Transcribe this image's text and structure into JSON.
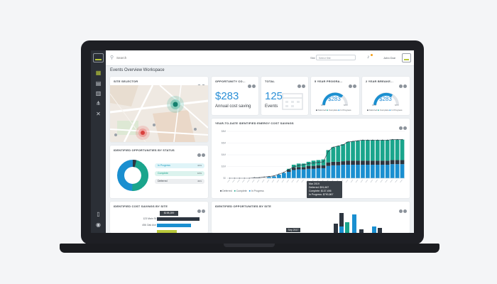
{
  "search": {
    "placeholder": "Search"
  },
  "header": {
    "site_label": "Site",
    "site_value": "Select Site",
    "user_name": "John Doe"
  },
  "page_title": "Events Overview Workspace",
  "cards": {
    "site_selector": {
      "title": "SITE SELECTOR"
    },
    "opportunity": {
      "title": "OPPORTUNITY CO...",
      "value": "$283",
      "sub": "Annual cost saving"
    },
    "total": {
      "title": "TOTAL",
      "value": "125",
      "sub": "Events"
    },
    "five_year": {
      "title": "5 YEAR PROGRA...",
      "value": "$283",
      "left": "$0M",
      "right": "$0M",
      "legend": [
        "Deferred",
        "Complete",
        "In Progress"
      ]
    },
    "two_year": {
      "title": "2 YEAR BREAKE...",
      "value": "$283",
      "left": "$0M",
      "right": "$0M",
      "legend": [
        "Deferred",
        "Complete",
        "In Progress"
      ]
    },
    "status": {
      "title": "IDENTIFIED OPPORTUNITIES BY STATUS",
      "items": [
        {
          "label": "In Progress",
          "pct": "41%",
          "color": "#1a9dbf",
          "bg": "#dff4f8"
        },
        {
          "label": "Complete",
          "pct": "10%",
          "color": "#1aa58c",
          "bg": "#dcf3ee"
        },
        {
          "label": "Deferred",
          "pct": "49%",
          "color": "#3b4148",
          "bg": "#eceef0"
        }
      ]
    },
    "ytd": {
      "title": "YEAR-TO-DATE IDENTIFIED ENERGY COST SAVINGS",
      "tooltip": {
        "date": "Mar 2019",
        "deferred": "Deferred: $91,667",
        "complete": "Complete: $137,456",
        "in_progress": "In Progress: $790,867"
      },
      "legend": [
        "Deferred",
        "Complete",
        "In Progress"
      ]
    },
    "by_site": {
      "title": "IDENTIFIED COST SAVINGS BY SITE",
      "tooltip": "$198,289",
      "row1": "123 Main St",
      "row2": "456 Oak Ave"
    },
    "opps_site": {
      "title": "IDENTIFIED OPPORTUNITIES BY SITE",
      "tooltip": "Sep 2017"
    }
  },
  "chart_data": {
    "type": "bar",
    "title": "YEAR-TO-DATE IDENTIFIED ENERGY COST SAVINGS",
    "y_ticks": [
      "$0",
      "$2M",
      "$4M",
      "$6M",
      "$8M"
    ],
    "ylim": [
      0,
      8
    ],
    "stacked": true,
    "legend_position": "bottom",
    "series": [
      {
        "name": "In Progress",
        "color": "#1a8fd0",
        "values": [
          0,
          0,
          0,
          0,
          0,
          0,
          0,
          0,
          0.2,
          0.3,
          0.6,
          0.9,
          1.1,
          1.4,
          1.5,
          1.5,
          1.6,
          1.6,
          1.7,
          1.7,
          2.1,
          2.2,
          2.2,
          2.3,
          2.3,
          2.3,
          2.3,
          2.3,
          2.3,
          2.3,
          2.3,
          2.3,
          2.3,
          2.4,
          2.4,
          2.4
        ]
      },
      {
        "name": "Deferred",
        "color": "#2d3540",
        "values": [
          0,
          0,
          0,
          0,
          0,
          0,
          0,
          0,
          0,
          0,
          0,
          0,
          0.3,
          0.4,
          0.4,
          0.4,
          0.5,
          0.5,
          0.5,
          0.5,
          0.6,
          0.6,
          0.6,
          0.6,
          0.7,
          0.7,
          0.7,
          0.7,
          0.7,
          0.7,
          0.7,
          0.7,
          0.7,
          0.7,
          0.7,
          0.7
        ]
      },
      {
        "name": "Complete",
        "color": "#1aa58c",
        "values": [
          0,
          0,
          0,
          0,
          0,
          0,
          0,
          0,
          0,
          0,
          0,
          0,
          0.2,
          0.5,
          0.6,
          0.6,
          0.7,
          0.9,
          0.9,
          1.0,
          2.1,
          2.5,
          2.7,
          2.9,
          3.2,
          3.3,
          3.4,
          3.5,
          3.5,
          3.5,
          3.5,
          3.5,
          3.5,
          3.5,
          3.5,
          3.5
        ]
      }
    ],
    "line_values": [
      0,
      0,
      0,
      0,
      0,
      0.1,
      0.1,
      0.2,
      0.3,
      0.4,
      0.7,
      1.0,
      1.5,
      1.9,
      2.2,
      2.3,
      2.5,
      2.6,
      2.7,
      2.8,
      4.6,
      5.3,
      5.5,
      5.7,
      6.2,
      6.3,
      6.4,
      6.5,
      6.5,
      6.5,
      6.5,
      6.5,
      6.5,
      6.6,
      6.6,
      6.6
    ]
  }
}
